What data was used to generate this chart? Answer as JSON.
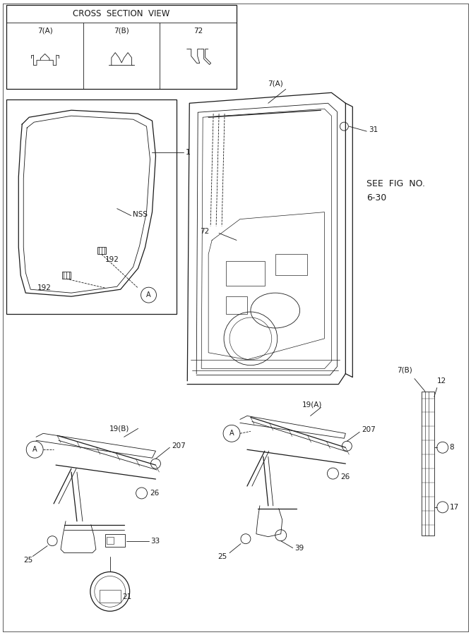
{
  "bg_color": "#ffffff",
  "line_color": "#1a1a1a",
  "fig_width": 6.67,
  "fig_height": 9.0,
  "cross_section_title": "CROSS  SECTION  VIEW",
  "cross_labels": [
    "7(A)",
    "7(B)",
    "72"
  ]
}
